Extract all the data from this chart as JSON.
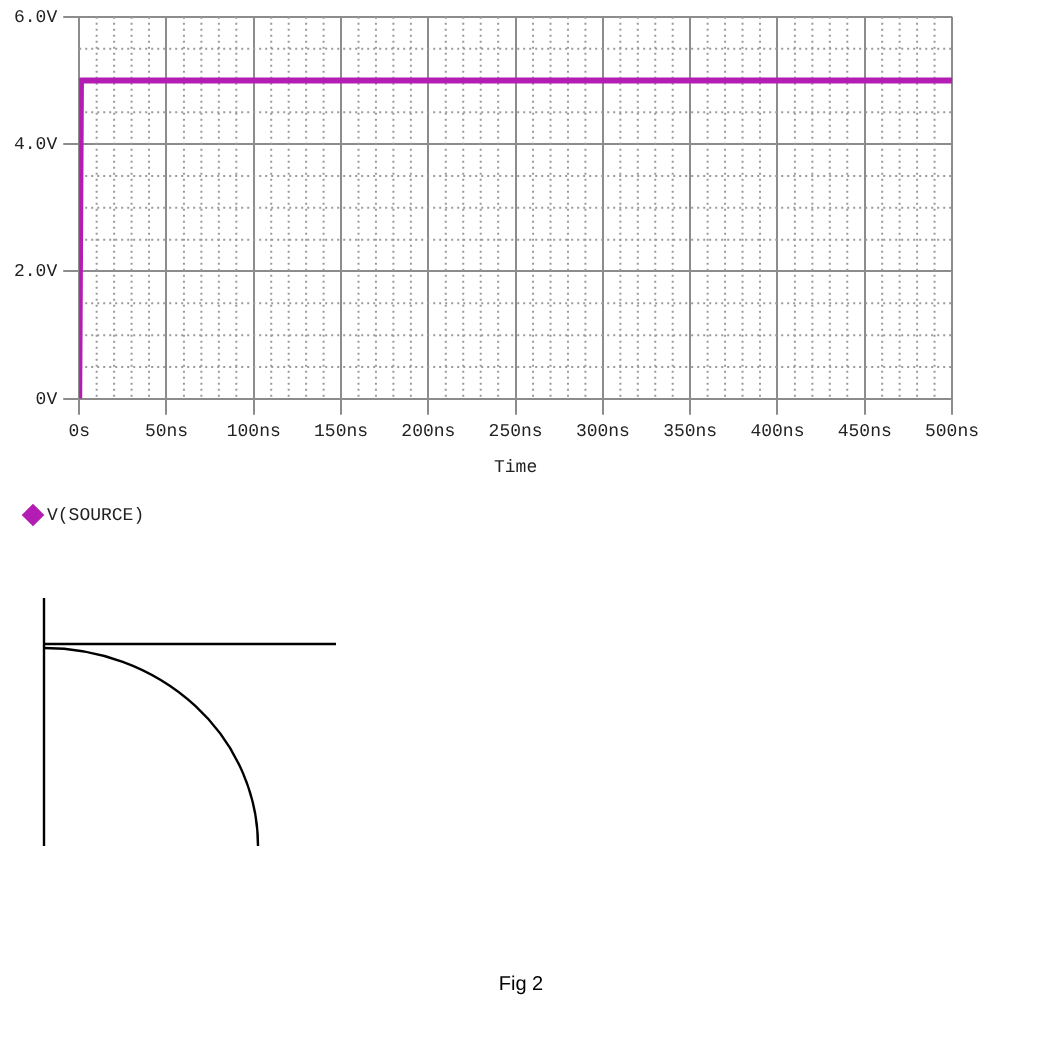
{
  "chart_data": {
    "type": "line",
    "xlabel": "Time",
    "x": [
      0,
      1,
      500
    ],
    "series": [
      {
        "name": "V(SOURCE)",
        "color": "#b31db3",
        "values": [
          0,
          5,
          5
        ]
      }
    ],
    "xlim": [
      0,
      500
    ],
    "xticks": [
      {
        "value": 0,
        "label": "0s"
      },
      {
        "value": 50,
        "label": "50ns"
      },
      {
        "value": 100,
        "label": "100ns"
      },
      {
        "value": 150,
        "label": "150ns"
      },
      {
        "value": 200,
        "label": "200ns"
      },
      {
        "value": 250,
        "label": "250ns"
      },
      {
        "value": 300,
        "label": "300ns"
      },
      {
        "value": 350,
        "label": "350ns"
      },
      {
        "value": 400,
        "label": "400ns"
      },
      {
        "value": 450,
        "label": "450ns"
      },
      {
        "value": 500,
        "label": "500ns"
      }
    ],
    "ylim": [
      0,
      6
    ],
    "yticks": [
      {
        "value": 0,
        "label": "0V"
      },
      {
        "value": 2,
        "label": "2.0V"
      },
      {
        "value": 4,
        "label": "4.0V"
      },
      {
        "value": 6,
        "label": "6.0V"
      }
    ],
    "grid": true,
    "legend": "bottom left",
    "line_style": "solid",
    "annotations": [
      "Fig 2"
    ]
  }
}
